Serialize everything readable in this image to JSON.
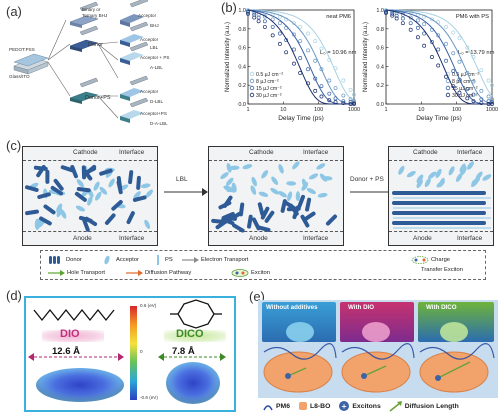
{
  "panels": {
    "a": "(a)",
    "b": "(b)",
    "c": "(c)",
    "d": "(d)",
    "e": "(e)"
  },
  "panel_a": {
    "layers": [
      "PEDOT:PSS",
      "Glass/ITO"
    ],
    "mid_labels": [
      "Binary or",
      "Ternary BHJ"
    ],
    "donor": "Donor",
    "donor_ps": "Donor+PS",
    "acceptor": "Acceptor",
    "acceptor_ps": "Acceptor + PS",
    "acceptor_ps2": "Acceptor+PS",
    "outcomes": [
      "BHJ",
      "LBL",
      "A-LBL",
      "D-LBL",
      "D-A-LBL"
    ]
  },
  "chart_data": [
    {
      "type": "scatter",
      "title": "neat PM6",
      "xlabel": "Delay Time (ps)",
      "ylabel": "Normalized Intensity (a.u.)",
      "xscale": "log",
      "xlim": [
        1,
        1000
      ],
      "ylim": [
        0.0,
        1.0
      ],
      "x_ticks": [
        "1",
        "10",
        "100",
        "1000"
      ],
      "y_ticks": [
        "0.0",
        "0.2",
        "0.4",
        "0.6",
        "0.8",
        "1.0"
      ],
      "annotation": "L₀ = 10.96 nm",
      "legend_position": "bottom-left",
      "series": [
        {
          "name": "0.5 μJ cm⁻²",
          "color": "#a9d2e3",
          "tau": 280,
          "points": [
            [
              1,
              1.0
            ],
            [
              1.5,
              0.99
            ],
            [
              2,
              0.98
            ],
            [
              3,
              0.97
            ],
            [
              5,
              0.95
            ],
            [
              8,
              0.93
            ],
            [
              12,
              0.9
            ],
            [
              20,
              0.86
            ],
            [
              30,
              0.82
            ],
            [
              50,
              0.75
            ],
            [
              80,
              0.67
            ],
            [
              120,
              0.59
            ],
            [
              200,
              0.47
            ],
            [
              300,
              0.38
            ],
            [
              500,
              0.25
            ],
            [
              800,
              0.15
            ],
            [
              1000,
              0.1
            ]
          ]
        },
        {
          "name": "8 μJ cm⁻²",
          "color": "#6a98c4",
          "tau": 120,
          "points": [
            [
              1,
              0.99
            ],
            [
              1.5,
              0.97
            ],
            [
              2,
              0.95
            ],
            [
              3,
              0.93
            ],
            [
              5,
              0.9
            ],
            [
              8,
              0.86
            ],
            [
              12,
              0.81
            ],
            [
              20,
              0.74
            ],
            [
              30,
              0.67
            ],
            [
              50,
              0.57
            ],
            [
              80,
              0.46
            ],
            [
              120,
              0.37
            ],
            [
              200,
              0.25
            ],
            [
              300,
              0.17
            ],
            [
              500,
              0.09
            ],
            [
              800,
              0.05
            ],
            [
              1000,
              0.03
            ]
          ]
        },
        {
          "name": "15 μJ cm⁻²",
          "color": "#3b63a6",
          "tau": 60,
          "points": [
            [
              1,
              0.98
            ],
            [
              1.5,
              0.95
            ],
            [
              2,
              0.92
            ],
            [
              3,
              0.88
            ],
            [
              5,
              0.82
            ],
            [
              8,
              0.75
            ],
            [
              12,
              0.68
            ],
            [
              20,
              0.58
            ],
            [
              30,
              0.49
            ],
            [
              50,
              0.37
            ],
            [
              80,
              0.27
            ],
            [
              120,
              0.19
            ],
            [
              200,
              0.11
            ],
            [
              300,
              0.06
            ],
            [
              500,
              0.03
            ],
            [
              800,
              0.02
            ],
            [
              1000,
              0.01
            ]
          ]
        },
        {
          "name": "30 μJ cm⁻²",
          "color": "#1c2f6f",
          "tau": 30,
          "points": [
            [
              1,
              0.96
            ],
            [
              1.5,
              0.92
            ],
            [
              2,
              0.88
            ],
            [
              3,
              0.82
            ],
            [
              5,
              0.73
            ],
            [
              8,
              0.64
            ],
            [
              12,
              0.55
            ],
            [
              20,
              0.43
            ],
            [
              30,
              0.33
            ],
            [
              50,
              0.22
            ],
            [
              80,
              0.14
            ],
            [
              120,
              0.08
            ],
            [
              200,
              0.04
            ],
            [
              300,
              0.02
            ],
            [
              500,
              0.01
            ],
            [
              800,
              0.0
            ],
            [
              1000,
              0.0
            ]
          ]
        }
      ]
    },
    {
      "type": "scatter",
      "title": "PM6 with PS",
      "xlabel": "Delay Time (ps)",
      "ylabel": "Normalized Intensity (a.u.)",
      "xscale": "log",
      "xlim": [
        1,
        1000
      ],
      "ylim": [
        0.0,
        1.0
      ],
      "x_ticks": [
        "1",
        "10",
        "100",
        "1000"
      ],
      "y_ticks": [
        "0.0",
        "0.2",
        "0.4",
        "0.6",
        "0.8",
        "1.0"
      ],
      "annotation": "L₀ = 13.79 nm",
      "legend_position": "bottom-right",
      "series": [
        {
          "name": "0.5 μJ cm⁻²",
          "color": "#a9d2e3",
          "tau": 400,
          "points": [
            [
              1,
              1.0
            ],
            [
              1.5,
              0.99
            ],
            [
              2,
              0.99
            ],
            [
              3,
              0.98
            ],
            [
              5,
              0.97
            ],
            [
              8,
              0.95
            ],
            [
              12,
              0.93
            ],
            [
              20,
              0.9
            ],
            [
              30,
              0.87
            ],
            [
              50,
              0.82
            ],
            [
              80,
              0.76
            ],
            [
              120,
              0.7
            ],
            [
              200,
              0.6
            ],
            [
              300,
              0.5
            ],
            [
              500,
              0.36
            ],
            [
              800,
              0.25
            ],
            [
              1000,
              0.2
            ]
          ]
        },
        {
          "name": "8 μJ cm⁻²",
          "color": "#6a98c4",
          "tau": 180,
          "points": [
            [
              1,
              0.99
            ],
            [
              1.5,
              0.98
            ],
            [
              2,
              0.97
            ],
            [
              3,
              0.95
            ],
            [
              5,
              0.92
            ],
            [
              8,
              0.89
            ],
            [
              12,
              0.85
            ],
            [
              20,
              0.79
            ],
            [
              30,
              0.73
            ],
            [
              50,
              0.64
            ],
            [
              80,
              0.54
            ],
            [
              120,
              0.45
            ],
            [
              200,
              0.33
            ],
            [
              300,
              0.24
            ],
            [
              500,
              0.14
            ],
            [
              800,
              0.08
            ],
            [
              1000,
              0.05
            ]
          ]
        },
        {
          "name": "15 μJ cm⁻²",
          "color": "#3b63a6",
          "tau": 90,
          "points": [
            [
              1,
              0.98
            ],
            [
              1.5,
              0.96
            ],
            [
              2,
              0.94
            ],
            [
              3,
              0.91
            ],
            [
              5,
              0.86
            ],
            [
              8,
              0.81
            ],
            [
              12,
              0.75
            ],
            [
              20,
              0.66
            ],
            [
              30,
              0.58
            ],
            [
              50,
              0.46
            ],
            [
              80,
              0.35
            ],
            [
              120,
              0.26
            ],
            [
              200,
              0.16
            ],
            [
              300,
              0.1
            ],
            [
              500,
              0.05
            ],
            [
              800,
              0.03
            ],
            [
              1000,
              0.02
            ]
          ]
        },
        {
          "name": "30 μJ cm⁻²",
          "color": "#1c2f6f",
          "tau": 45,
          "points": [
            [
              1,
              0.97
            ],
            [
              1.5,
              0.94
            ],
            [
              2,
              0.91
            ],
            [
              3,
              0.86
            ],
            [
              5,
              0.79
            ],
            [
              8,
              0.71
            ],
            [
              12,
              0.62
            ],
            [
              20,
              0.5
            ],
            [
              30,
              0.41
            ],
            [
              50,
              0.29
            ],
            [
              80,
              0.19
            ],
            [
              120,
              0.12
            ],
            [
              200,
              0.06
            ],
            [
              300,
              0.03
            ],
            [
              500,
              0.01
            ],
            [
              800,
              0.0
            ],
            [
              1000,
              0.0
            ]
          ]
        }
      ]
    }
  ],
  "panel_c": {
    "cathode": "Cathode",
    "anode": "Anode",
    "interface": "Interface",
    "arrow1": "LBL",
    "arrow2": "Donor + PS",
    "legend": {
      "donor": "Donor",
      "acceptor": "Acceptor",
      "ps": "PS",
      "electron": "Electron Transport",
      "hole": "Hole Transport",
      "diffusion": "Diffusion Pathway",
      "exciton": "Exciton",
      "ct_exciton_1": "Charge",
      "ct_exciton_2": "Transfer Exciton"
    }
  },
  "panel_d": {
    "dio": "DIO",
    "dico": "DICO",
    "dio_len": "12.6 Å",
    "dico_len": "7.8 Å",
    "scale_max": "0.6 (eV)",
    "scale_zero": "0",
    "scale_min": "-0.6 (eV)"
  },
  "panel_e": {
    "without": "Without additives",
    "with_dio": "With DIO",
    "with_dico": "With DICO",
    "legend_pm6": "PM6",
    "legend_l8bo": "L8-BO",
    "legend_excitons": "Excitons",
    "legend_diffusion": "Diffusion Length"
  }
}
